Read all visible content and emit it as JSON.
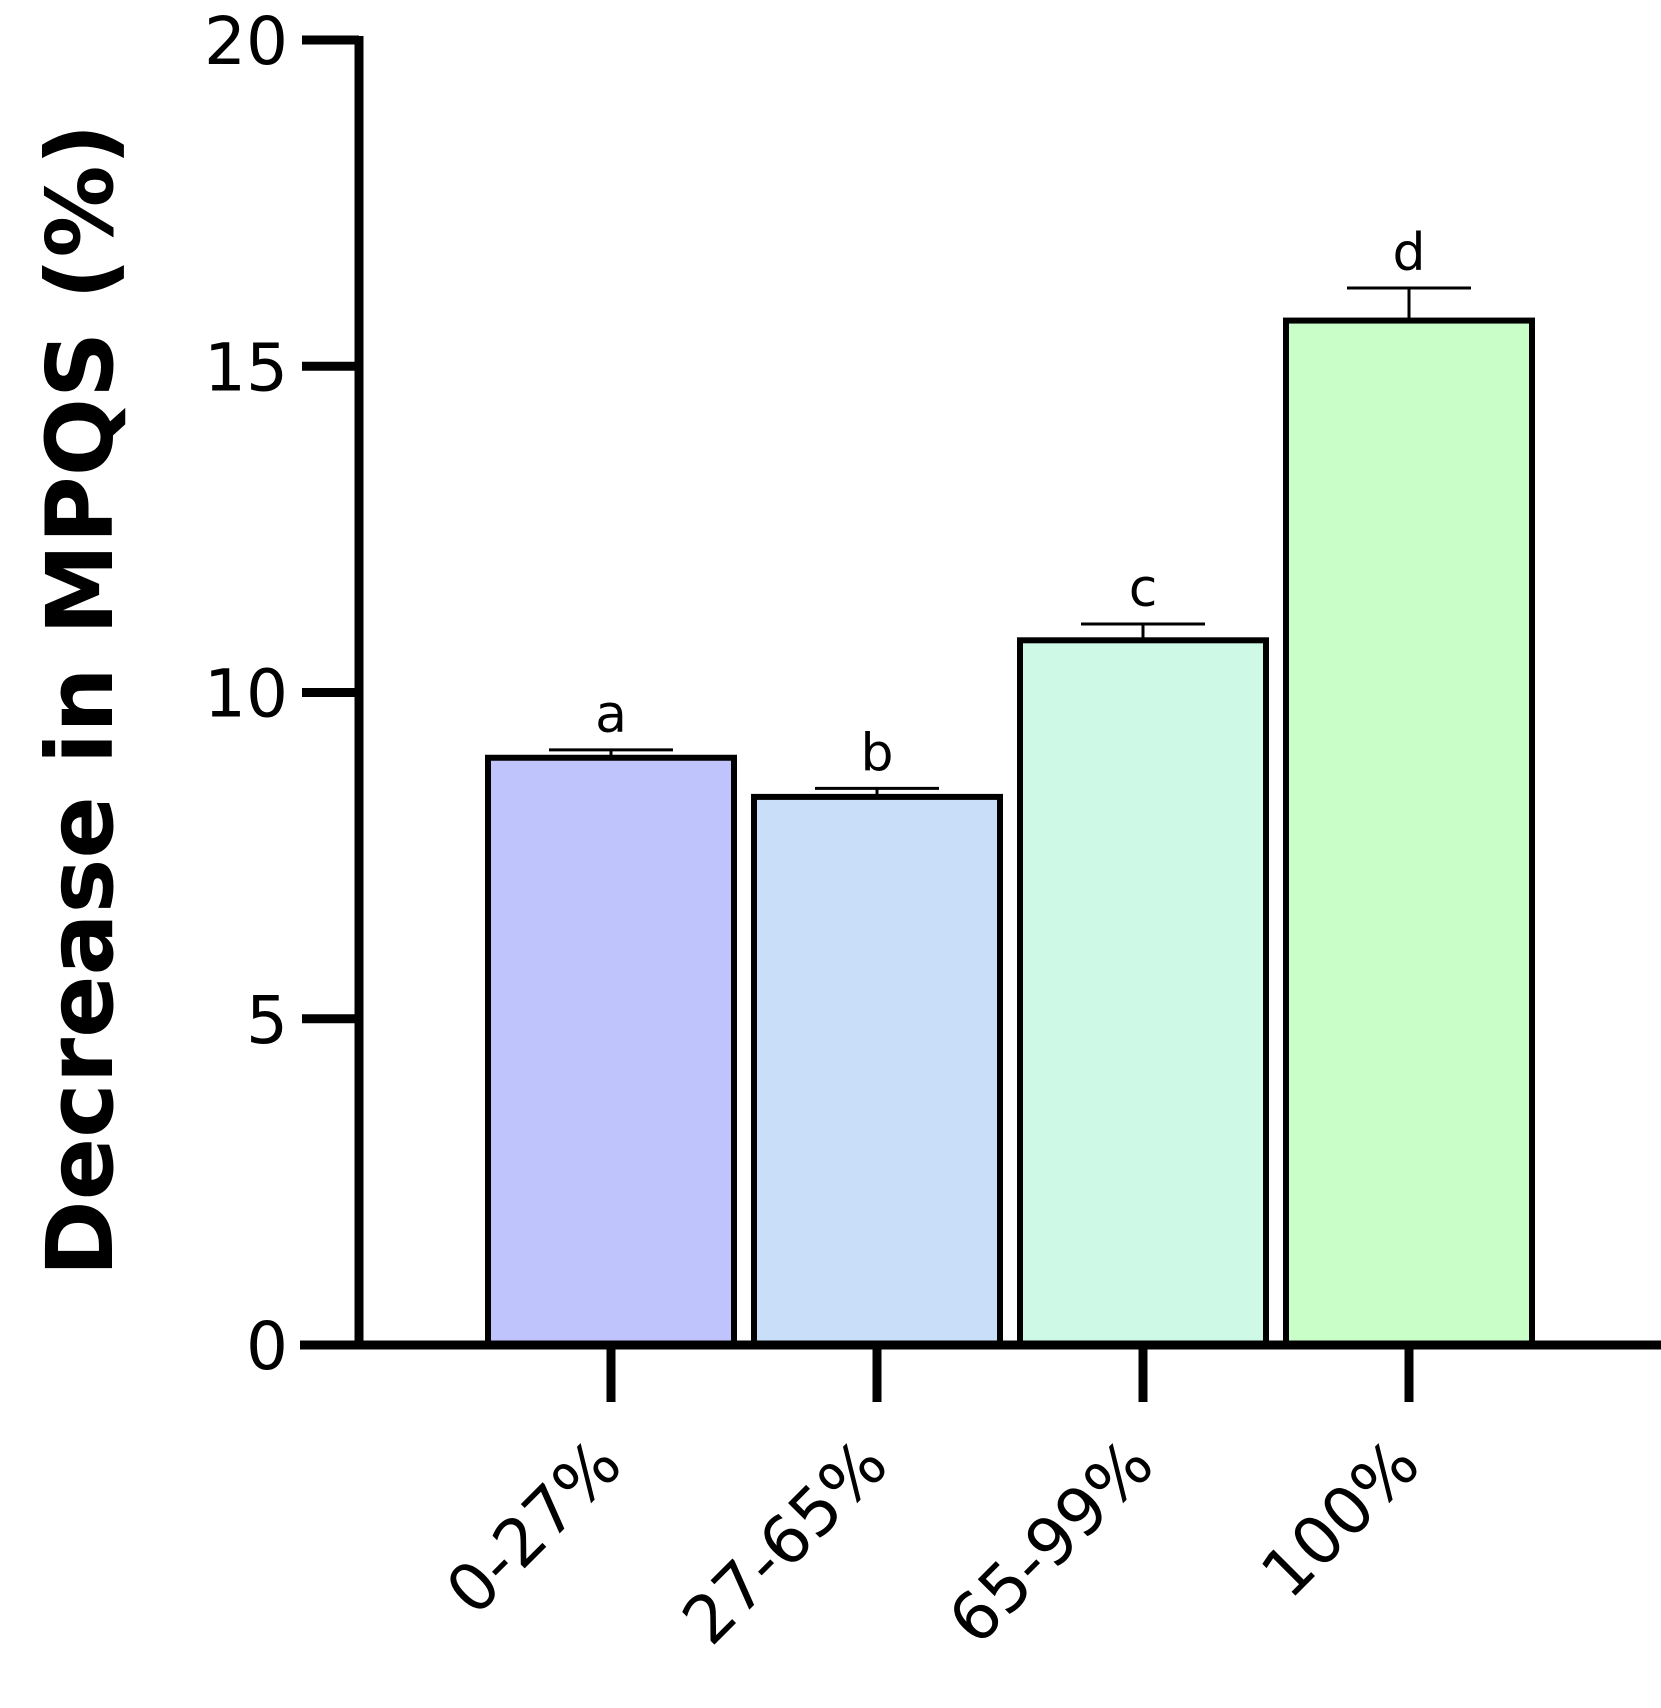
{
  "chart_data": {
    "type": "bar",
    "title": "",
    "xlabel": "",
    "ylabel": "Decrease in MPQS (%)",
    "ylim": [
      0,
      20
    ],
    "yticks": [
      0,
      5,
      10,
      15,
      20
    ],
    "ytick_labels": [
      "0",
      "5",
      "10",
      "15",
      "20"
    ],
    "categories": [
      "0-27%",
      "27-65%",
      "65-99%",
      "100%"
    ],
    "values": [
      9.0,
      8.4,
      10.8,
      15.7
    ],
    "errors": [
      0.12,
      0.13,
      0.25,
      0.5
    ],
    "significance_labels": [
      "a",
      "b",
      "c",
      "d"
    ],
    "bar_colors": [
      "#c0c4fc",
      "#c9def8",
      "#cef9e6",
      "#cafec8"
    ],
    "grid": false,
    "legend": "none"
  }
}
